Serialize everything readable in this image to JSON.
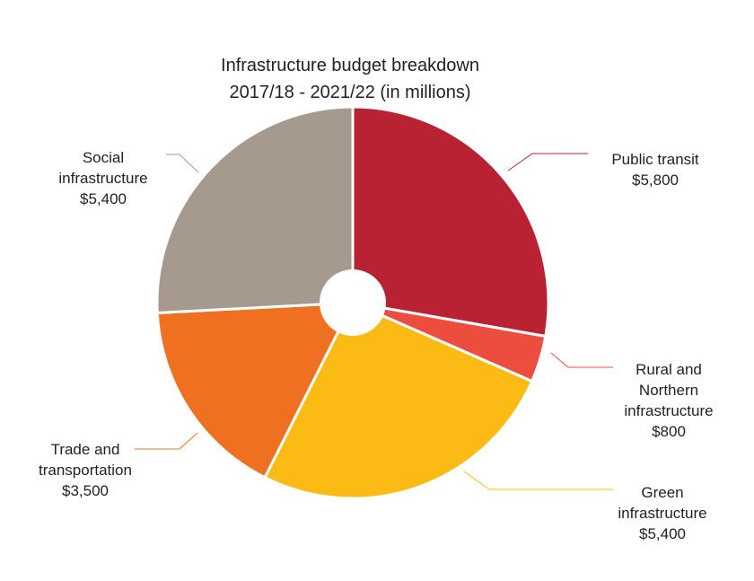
{
  "chart_data": {
    "type": "pie",
    "title": [
      "Infrastructure budget breakdown",
      "2017/18 - 2021/22 (in millions)"
    ],
    "donut": true,
    "slices": [
      {
        "name": "Public transit",
        "label_lines": [
          "Public transit"
        ],
        "value": 5800,
        "value_label": "$5,800",
        "color": "#b82233"
      },
      {
        "name": "Rural and Northern infrastructure",
        "label_lines": [
          "Rural and",
          "Northern",
          "infrastructure"
        ],
        "value": 800,
        "value_label": "$800",
        "color": "#ec4d3f"
      },
      {
        "name": "Green infrastructure",
        "label_lines": [
          "Green",
          "infrastructure"
        ],
        "value": 5400,
        "value_label": "$5,400",
        "color": "#fbbb14"
      },
      {
        "name": "Trade and transportation",
        "label_lines": [
          "Trade and",
          "transportation"
        ],
        "value": 3500,
        "value_label": "$3,500",
        "color": "#f07022"
      },
      {
        "name": "Social infrastructure",
        "label_lines": [
          "Social",
          "infrastructure"
        ],
        "value": 5400,
        "value_label": "$5,400",
        "color": "#a69a8f"
      }
    ]
  }
}
